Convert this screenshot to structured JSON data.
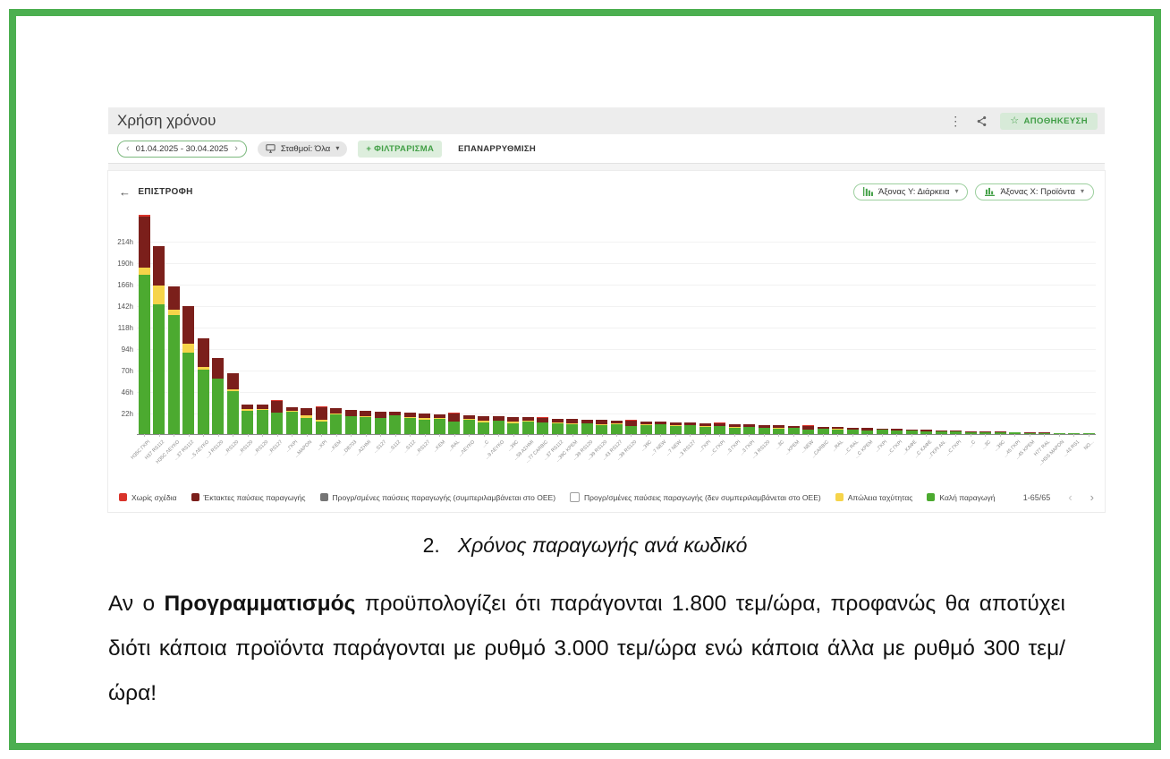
{
  "app": {
    "title": "Χρήση χρόνου",
    "header": {
      "save_label": "ΑΠΟΘΗΚΕΥΣΗ",
      "star": "☆",
      "kebab": "⋮"
    },
    "toolbar": {
      "date_range": "01.04.2025 - 30.04.2025",
      "prev": "‹",
      "next": "›",
      "stations": "Σταθμοί: Όλα",
      "filter_button": "+ ΦΙΛΤΡΑΡΙΣΜΑ",
      "reset_button": "ΕΠΑΝΑΡΡΥΘΜΙΣΗ",
      "caret": "▾"
    },
    "chart_header": {
      "back_arrow": "←",
      "back_label": "ΕΠΙΣΤΡΟΦΗ",
      "y_axis_select": "Άξονας Υ: Διάρκεια",
      "x_axis_select": "Άξονας Χ: Προϊόντα"
    },
    "pagination": {
      "label": "1-65/65",
      "prev": "‹",
      "next": "›"
    }
  },
  "document": {
    "caption_number": "2.",
    "caption_text": "Χρόνος παραγωγής ανά κωδικό",
    "paragraph_prefix": "Αν ο ",
    "paragraph_bold": "Προγραμματισμός",
    "paragraph_suffix": " προϋπολογίζει ότι παράγονται 1.800 τεμ/ώρα, προφανώς θα αποτύχει διότι κάποια προϊόντα παράγονται με ρυθμό 3.000 τεμ/ώρα ενώ κάποια άλλα με ρυθμό 300 τεμ/ώρα!"
  },
  "colors": {
    "page_border": "#4caf50",
    "accent_green": "#43a047",
    "good_production": "#4caa30",
    "speed_loss": "#f6d44a",
    "unplanned_stop": "#7b1f1b",
    "no_plans": "#d9342b",
    "planned_stop": "#757575"
  },
  "chart_data": {
    "type": "bar",
    "stacked": true,
    "unit": "h",
    "ylim": [
      0,
      250
    ],
    "yticks": [
      22,
      46,
      70,
      94,
      118,
      142,
      166,
      190,
      214
    ],
    "grid": true,
    "legend_position": "bottom",
    "categories": [
      "Η35C ΓΚΡΙ",
      "Η37 RS112",
      "Η35C ΛΕΥΚΟ",
      "...37 RS112",
      "...5 ΛΕΥΚΟ",
      "...J RS120",
      "...RS120",
      "...RS120",
      "...RS120",
      "...RS127",
      "...ΓΚΡΙ",
      "...ΜΑΡΟΝ",
      "...ΚΡΙ",
      "...ΚΕΜ",
      "...DB703",
      "...ΑΣΗΜΙ",
      "...S127",
      "...S112",
      "...S112",
      "...RS127",
      "...ΚΕΜ",
      "...RAL",
      "...ΛΕΥΚΟ",
      "...C",
      "...9 ΛΕΥΚΟ",
      "...39C",
      "...59 ΑΣΗΜΙ",
      "...77 CARBIC",
      "...37 RS112",
      "...39C ΚΡΕΜ",
      "...39 RS120",
      "...39 RS120",
      "...43 RS127",
      "...39 RS120",
      "...39C",
      "...7 NEW",
      "...7 NEW",
      "...3 RS127",
      "...ΓΚΡΙ",
      "...C ΓΚΡΙ",
      "...3 ΓΚΡΙ",
      "...3 ΓΚΡΙ",
      "...3 RS120",
      "...3C",
      "...ΚΡΕΜ",
      "...NEW",
      "...CARBIC",
      "...RAL",
      "...C RAL",
      "...C ΚΡΕΜ",
      "...ΓΚΡΙ",
      "...C ΓΚΡΙ",
      "...ΚΑΦΕ",
      "...C ΚΑΦΕ",
      "...ΓΚΡΙ ΑΝ.",
      "...C ΓΚΡΙ",
      "...C",
      "...3C",
      "...39C",
      "...45 ΓΚΡΙ",
      "...45 ΚΡΕΜ",
      "Η77 RAL",
      "...HSS ΜΑΡΟΝ",
      "...43 RS1",
      "ΝΟ..."
    ],
    "series": [
      {
        "name": "Καλή παραγωγή",
        "color": "#4caa30",
        "values": [
          178,
          145,
          133,
          91,
          72,
          62,
          48,
          26,
          27,
          24,
          25,
          18,
          14,
          22,
          20,
          19,
          18,
          21,
          18,
          16,
          17,
          14,
          16,
          13,
          15,
          12,
          14,
          13,
          12,
          11,
          12,
          10,
          11,
          9,
          10,
          11,
          9,
          10,
          8,
          9,
          7,
          8,
          7,
          6,
          7,
          5,
          6,
          5,
          5,
          4,
          5,
          4,
          4,
          3,
          3,
          3,
          2,
          2,
          2,
          2,
          1,
          1,
          1,
          1,
          1
        ]
      },
      {
        "name": "Απώλεια ταχύτητας",
        "color": "#f6d44a",
        "values": [
          8,
          21,
          6,
          10,
          3,
          0,
          2,
          2,
          1,
          0,
          1,
          3,
          2,
          1,
          0,
          1,
          0,
          0,
          1,
          2,
          1,
          0,
          1,
          2,
          0,
          2,
          1,
          0,
          1,
          1,
          0,
          1,
          1,
          0,
          1,
          0,
          1,
          0,
          1,
          0,
          1,
          0,
          0,
          1,
          0,
          0,
          0,
          1,
          0,
          0,
          0,
          0,
          0,
          0,
          0,
          0,
          0,
          0,
          0,
          0,
          0,
          0,
          0,
          0,
          0
        ]
      },
      {
        "name": "Έκτακτες παύσεις παραγωγής",
        "color": "#7b1f1b",
        "values": [
          57,
          44,
          26,
          42,
          32,
          23,
          18,
          5,
          5,
          13,
          4,
          8,
          14,
          6,
          7,
          6,
          7,
          4,
          5,
          5,
          4,
          9,
          4,
          5,
          5,
          5,
          4,
          5,
          4,
          5,
          4,
          5,
          3,
          6,
          3,
          3,
          3,
          3,
          3,
          3,
          3,
          3,
          3,
          3,
          2,
          4,
          2,
          2,
          2,
          3,
          1,
          2,
          1,
          2,
          1,
          1,
          1,
          1,
          1,
          0,
          1,
          1,
          0,
          0,
          0
        ]
      },
      {
        "name": "Χωρίς σχέδια",
        "color": "#d9342b",
        "values": [
          2,
          0,
          0,
          0,
          0,
          0,
          0,
          0,
          0,
          1,
          0,
          0,
          1,
          0,
          0,
          0,
          0,
          0,
          0,
          0,
          0,
          1,
          0,
          0,
          0,
          0,
          0,
          1,
          0,
          0,
          0,
          0,
          0,
          1,
          0,
          0,
          0,
          0,
          0,
          1,
          0,
          0,
          0,
          0,
          0,
          1,
          0,
          0,
          0,
          0,
          0,
          0,
          0,
          0,
          0,
          0,
          0,
          0,
          0,
          0,
          0,
          0,
          0,
          0,
          0
        ]
      }
    ],
    "legend": [
      {
        "label": "Χωρίς σχέδια",
        "color": "#d9342b",
        "fill": true
      },
      {
        "label": "Έκτακτες παύσεις παραγωγής",
        "color": "#7b1f1b",
        "fill": true
      },
      {
        "label": "Προγρ/σμένες παύσεις παραγωγής (συμπεριλαμβάνεται στο OEE)",
        "color": "#757575",
        "fill": true
      },
      {
        "label": "Προγρ/σμένες παύσεις παραγωγής (δεν συμπεριλαμβάνεται στο OEE)",
        "color": "#9e9e9e",
        "fill": false
      },
      {
        "label": "Απώλεια ταχύτητας",
        "color": "#f6d44a",
        "fill": true
      },
      {
        "label": "Καλή παραγωγή",
        "color": "#4caa30",
        "fill": true
      }
    ]
  }
}
